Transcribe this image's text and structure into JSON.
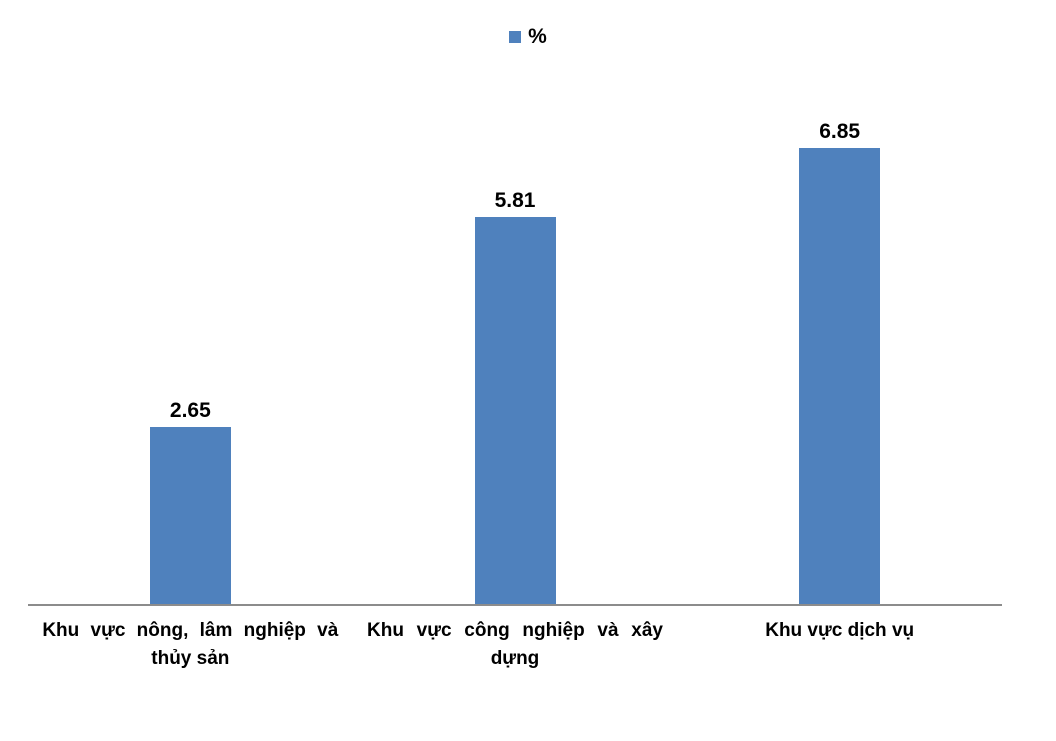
{
  "chart_data": {
    "type": "bar",
    "title": "",
    "categories": [
      "Khu vực nông, lâm nghiệp và thủy sản",
      "Khu vực công nghiệp và xây dựng",
      "Khu vực dịch vụ"
    ],
    "series": [
      {
        "name": "%",
        "values": [
          2.65,
          5.81,
          6.85
        ]
      }
    ],
    "data_labels": [
      "2.65",
      "5.81",
      "6.85"
    ],
    "xlabel": "",
    "ylabel": "",
    "ylim": [
      0,
      8
    ],
    "grid": false,
    "legend_position": "top-center",
    "colors": {
      "bar": "#4F81BD",
      "axis_line": "#8C8C8C",
      "text": "#000000",
      "background": "#FFFFFF"
    }
  },
  "legend": {
    "items": [
      {
        "label": "%",
        "marker_color": "#4F81BD"
      }
    ]
  }
}
